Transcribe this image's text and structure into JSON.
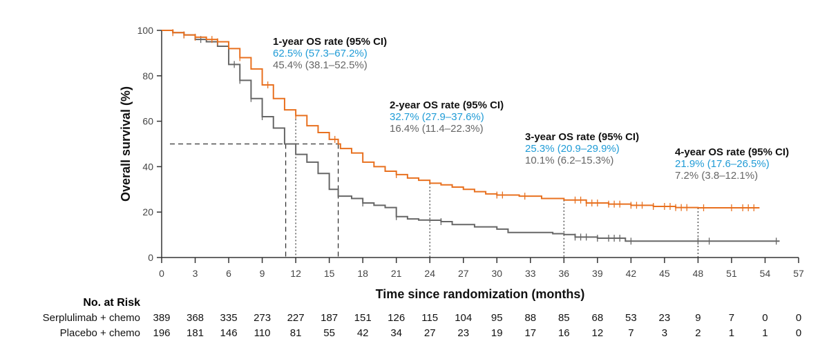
{
  "chart_data": {
    "type": "line",
    "xlabel": "Time since randomization (months)",
    "ylabel": "Overall survival (%)",
    "xlim": [
      0,
      57
    ],
    "ylim": [
      0,
      100
    ],
    "xticks": [
      0,
      3,
      6,
      9,
      12,
      15,
      18,
      21,
      24,
      27,
      30,
      33,
      36,
      39,
      42,
      45,
      48,
      51,
      54,
      57
    ],
    "yticks": [
      0,
      20,
      40,
      60,
      80,
      100
    ],
    "grid": false,
    "colors": {
      "serplulimab": "#e8701f",
      "placebo": "#666666",
      "serplulimab_text": "#1f9bd6"
    },
    "series": [
      {
        "name": "Serplulimab + chemo",
        "color": "#e8701f",
        "x": [
          0,
          1,
          2,
          3,
          4,
          5,
          6,
          7,
          8,
          9,
          10,
          11,
          12,
          13,
          14,
          15,
          15.8,
          16,
          17,
          18,
          19,
          20,
          21,
          22,
          23,
          24,
          25,
          26,
          27,
          28,
          29,
          30,
          32,
          34,
          36,
          38,
          40,
          42,
          44,
          46,
          48,
          53.5
        ],
        "y": [
          100,
          99,
          98,
          97,
          96,
          95,
          92,
          88,
          83,
          76,
          70,
          65,
          62.5,
          58,
          55,
          52,
          50,
          48,
          46,
          42,
          40,
          38,
          36.5,
          35,
          34,
          32.7,
          32,
          31,
          30,
          29,
          28,
          27.5,
          27,
          26,
          25.3,
          24,
          23.5,
          23,
          22.5,
          22,
          21.9,
          21.9
        ],
        "censored": [
          1,
          2,
          3,
          4.5,
          5,
          7,
          9.5,
          12,
          15.5,
          21,
          30,
          30.5,
          32.5,
          37,
          37.5,
          38,
          38.5,
          39,
          40,
          40.5,
          41,
          42,
          42.5,
          43,
          44,
          45,
          45.5,
          46,
          46.5,
          47,
          48.5,
          51,
          52,
          52.5,
          53
        ]
      },
      {
        "name": "Placebo + chemo",
        "color": "#666666",
        "x": [
          0,
          1,
          2,
          3,
          4,
          5,
          6,
          7,
          8,
          9,
          10,
          11,
          12,
          13,
          14,
          15,
          15.8,
          17,
          18,
          19,
          20,
          21,
          22,
          23,
          24,
          25,
          26,
          28,
          30,
          31,
          33,
          35,
          36,
          37,
          39,
          41.5,
          48,
          55.3
        ],
        "y": [
          100,
          99,
          98,
          96,
          95,
          93,
          85,
          78,
          70,
          62,
          57,
          50,
          45.4,
          42,
          37,
          30,
          27,
          26,
          24,
          23,
          22,
          18,
          17,
          16.5,
          16.4,
          15.8,
          14.5,
          13.5,
          12.5,
          11,
          11,
          10.5,
          10.1,
          9,
          8.5,
          7.2,
          7.2,
          7.2
        ],
        "censored": [
          2,
          3.5,
          6.5,
          7,
          8,
          9,
          18,
          21,
          25,
          37,
          37.5,
          38,
          39,
          40,
          40.5,
          41,
          42,
          48,
          49,
          55
        ]
      }
    ],
    "median_x": [
      11.1,
      15.8
    ],
    "landmarks": [
      12,
      24,
      36,
      48
    ],
    "annotations": [
      {
        "title": "1-year OS rate (95% CI)",
        "serplulimab": "62.5% (57.3–67.2%)",
        "placebo": "45.4% (38.1–52.5%)"
      },
      {
        "title": "2-year OS rate (95% CI)",
        "serplulimab": "32.7% (27.9–37.6%)",
        "placebo": "16.4% (11.4–22.3%)"
      },
      {
        "title": "3-year OS rate (95% CI)",
        "serplulimab": "25.3% (20.9–29.9%)",
        "placebo": "10.1% (6.2–15.3%)"
      },
      {
        "title": "4-year OS rate (95% CI)",
        "serplulimab": "21.9% (17.6–26.5%)",
        "placebo": "7.2% (3.8–12.1%)"
      }
    ],
    "at_risk": {
      "title": "No. at Risk",
      "rows": [
        {
          "label": "Serplulimab + chemo",
          "values": [
            389,
            368,
            335,
            273,
            227,
            187,
            151,
            126,
            115,
            104,
            95,
            88,
            85,
            68,
            53,
            23,
            9,
            7,
            0,
            0
          ]
        },
        {
          "label": "Placebo + chemo",
          "values": [
            196,
            181,
            146,
            110,
            81,
            55,
            42,
            34,
            27,
            23,
            19,
            17,
            16,
            12,
            7,
            3,
            2,
            1,
            1,
            0
          ]
        }
      ]
    }
  }
}
